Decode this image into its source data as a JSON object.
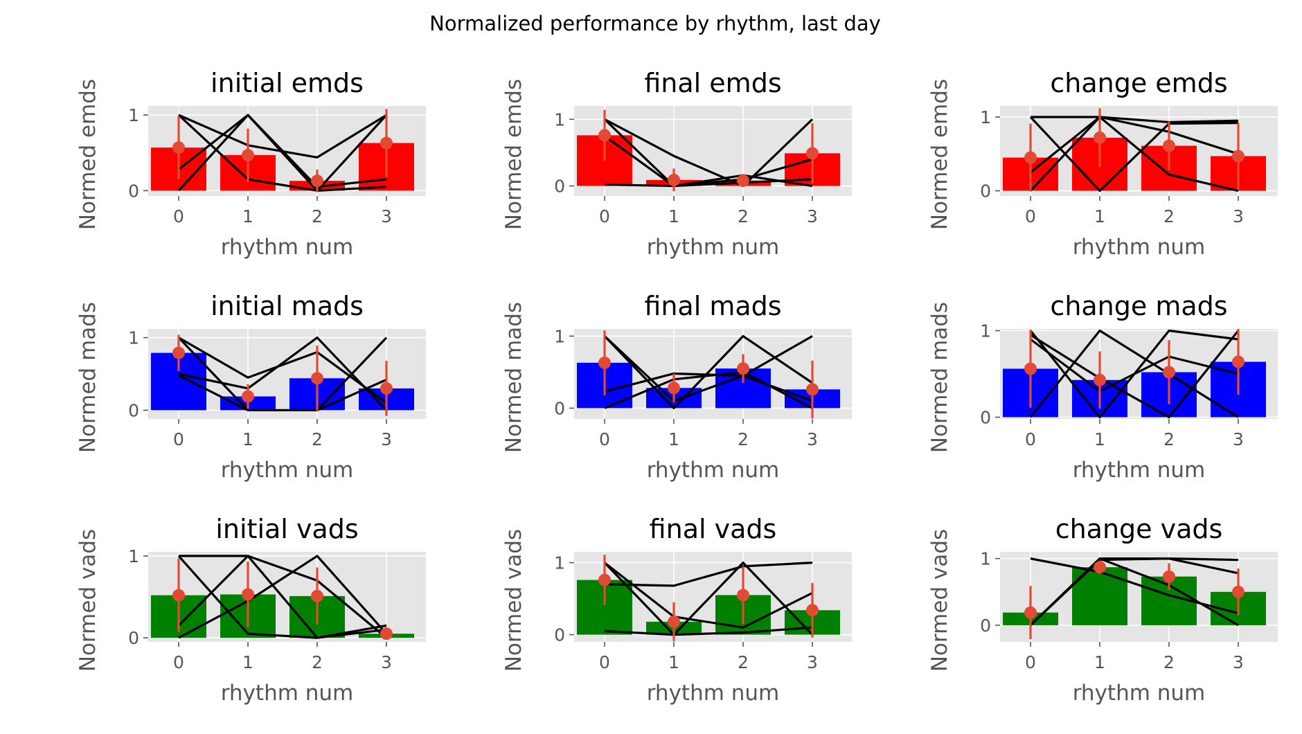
{
  "figure_title": "Normalized performance by rhythm, last day",
  "colors": {
    "panel_bg": "#E5E5E5",
    "grid": "#FFFFFF",
    "emds": "#FF0000",
    "mads": "#0000FF",
    "vads": "#008000",
    "mean_marker": "#E24A33",
    "subject_line": "#000000"
  },
  "chart_data": [
    {
      "type": "bar",
      "title": "initial emds",
      "xlabel": "rhythm num",
      "ylabel": "Normed emds",
      "categories": [
        "0",
        "1",
        "2",
        "3"
      ],
      "values": [
        0.57,
        0.47,
        0.13,
        0.63
      ],
      "errors": [
        0.42,
        0.35,
        0.15,
        0.45
      ],
      "yticks": [
        "0",
        "1"
      ],
      "ylim": [
        -0.07,
        1.12
      ],
      "bar_color_key": "emds",
      "subject_lines": [
        [
          1.0,
          0.6,
          0.44,
          1.0
        ],
        [
          0.28,
          1.0,
          0.0,
          1.0
        ],
        [
          0.0,
          1.0,
          0.05,
          0.15
        ],
        [
          1.0,
          0.15,
          0.0,
          0.05
        ]
      ]
    },
    {
      "type": "bar",
      "title": "final emds",
      "xlabel": "rhythm num",
      "ylabel": "Normed emds",
      "categories": [
        "0",
        "1",
        "2",
        "3"
      ],
      "values": [
        0.76,
        0.09,
        0.08,
        0.49
      ],
      "errors": [
        0.38,
        0.17,
        0.06,
        0.45
      ],
      "yticks": [
        "0",
        "1"
      ],
      "ylim": [
        -0.15,
        1.2
      ],
      "bar_color_key": "emds",
      "subject_lines": [
        [
          1.0,
          0.45,
          0.0,
          1.0
        ],
        [
          0.75,
          0.0,
          0.16,
          0.0
        ],
        [
          1.0,
          0.0,
          0.1,
          0.4
        ],
        [
          0.02,
          0.0,
          0.05,
          0.1
        ]
      ]
    },
    {
      "type": "bar",
      "title": "change emds",
      "xlabel": "rhythm num",
      "ylabel": "Normed emds",
      "categories": [
        "0",
        "1",
        "2",
        "3"
      ],
      "values": [
        0.45,
        0.72,
        0.61,
        0.47
      ],
      "errors": [
        0.46,
        0.4,
        0.33,
        0.45
      ],
      "yticks": [
        "0",
        "1"
      ],
      "ylim": [
        -0.07,
        1.15
      ],
      "bar_color_key": "emds",
      "subject_lines": [
        [
          1.0,
          0.0,
          0.91,
          0.92
        ],
        [
          0.0,
          1.0,
          0.22,
          0.0
        ],
        [
          0.25,
          1.0,
          0.93,
          0.95
        ],
        [
          1.0,
          1.0,
          0.8,
          0.5
        ]
      ]
    },
    {
      "type": "bar",
      "title": "initial mads",
      "xlabel": "rhythm num",
      "ylabel": "Normed mads",
      "categories": [
        "0",
        "1",
        "2",
        "3"
      ],
      "values": [
        0.79,
        0.19,
        0.44,
        0.3
      ],
      "errors": [
        0.25,
        0.17,
        0.45,
        0.38
      ],
      "yticks": [
        "0",
        "1"
      ],
      "ylim": [
        -0.12,
        1.12
      ],
      "bar_color_key": "mads",
      "subject_lines": [
        [
          1.0,
          0.45,
          0.8,
          0.1
        ],
        [
          0.5,
          0.3,
          1.0,
          0.0
        ],
        [
          0.48,
          0.0,
          0.0,
          1.0
        ],
        [
          1.0,
          0.0,
          0.0,
          0.42
        ]
      ]
    },
    {
      "type": "bar",
      "title": "final mads",
      "xlabel": "rhythm num",
      "ylabel": "Normed mads",
      "categories": [
        "0",
        "1",
        "2",
        "3"
      ],
      "values": [
        0.63,
        0.28,
        0.55,
        0.26
      ],
      "errors": [
        0.45,
        0.2,
        0.2,
        0.4
      ],
      "yticks": [
        "0",
        "1"
      ],
      "ylim": [
        -0.15,
        1.1
      ],
      "bar_color_key": "mads",
      "subject_lines": [
        [
          1.0,
          0.0,
          1.0,
          0.35
        ],
        [
          0.23,
          0.48,
          0.45,
          1.0
        ],
        [
          0.0,
          0.4,
          0.5,
          0.0
        ],
        [
          1.0,
          0.1,
          0.45,
          0.1
        ]
      ]
    },
    {
      "type": "bar",
      "title": "change mads",
      "xlabel": "rhythm num",
      "ylabel": "Normed mads",
      "categories": [
        "0",
        "1",
        "2",
        "3"
      ],
      "values": [
        0.56,
        0.43,
        0.52,
        0.64
      ],
      "errors": [
        0.45,
        0.33,
        0.37,
        0.38
      ],
      "yticks": [
        "0",
        "1"
      ],
      "ylim": [
        -0.02,
        1.02
      ],
      "bar_color_key": "mads",
      "subject_lines": [
        [
          1.0,
          0.0,
          1.0,
          0.9
        ],
        [
          0.95,
          0.45,
          0.0,
          1.0
        ],
        [
          0.0,
          1.0,
          0.5,
          0.0
        ],
        [
          0.9,
          0.3,
          0.7,
          0.5
        ]
      ]
    },
    {
      "type": "bar",
      "title": "initial vads",
      "xlabel": "rhythm num",
      "ylabel": "Normed vads",
      "categories": [
        "0",
        "1",
        "2",
        "3"
      ],
      "values": [
        0.52,
        0.53,
        0.51,
        0.05
      ],
      "errors": [
        0.45,
        0.4,
        0.35,
        0.05
      ],
      "yticks": [
        "0",
        "1"
      ],
      "ylim": [
        -0.05,
        1.05
      ],
      "bar_color_key": "vads",
      "subject_lines": [
        [
          1.0,
          1.0,
          0.7,
          0.0
        ],
        [
          0.15,
          1.0,
          0.0,
          0.15
        ],
        [
          0.0,
          0.45,
          1.0,
          0.05
        ],
        [
          1.0,
          0.05,
          0.0,
          0.1
        ]
      ]
    },
    {
      "type": "bar",
      "title": "final vads",
      "xlabel": "rhythm num",
      "ylabel": "Normed vads",
      "categories": [
        "0",
        "1",
        "2",
        "3"
      ],
      "values": [
        0.76,
        0.18,
        0.55,
        0.34
      ],
      "errors": [
        0.35,
        0.27,
        0.4,
        0.38
      ],
      "yticks": [
        "0",
        "1"
      ],
      "ylim": [
        -0.1,
        1.15
      ],
      "bar_color_key": "vads",
      "subject_lines": [
        [
          0.7,
          0.68,
          0.95,
          1.0
        ],
        [
          1.0,
          0.0,
          1.0,
          0.0
        ],
        [
          1.0,
          0.25,
          0.1,
          0.58
        ],
        [
          0.05,
          0.0,
          0.03,
          0.1
        ]
      ]
    },
    {
      "type": "bar",
      "title": "change vads",
      "xlabel": "rhythm num",
      "ylabel": "Normed vads",
      "categories": [
        "0",
        "1",
        "2",
        "3"
      ],
      "values": [
        0.19,
        0.87,
        0.73,
        0.5
      ],
      "errors": [
        0.4,
        0.1,
        0.2,
        0.35
      ],
      "yticks": [
        "0",
        "1"
      ],
      "ylim": [
        -0.25,
        1.1
      ],
      "bar_color_key": "vads",
      "subject_lines": [
        [
          1.0,
          0.8,
          0.45,
          0.18
        ],
        [
          0.0,
          1.0,
          1.0,
          0.98
        ],
        [
          0.0,
          0.98,
          1.0,
          0.78
        ],
        [
          0.0,
          1.0,
          0.6,
          0.0
        ]
      ]
    }
  ]
}
